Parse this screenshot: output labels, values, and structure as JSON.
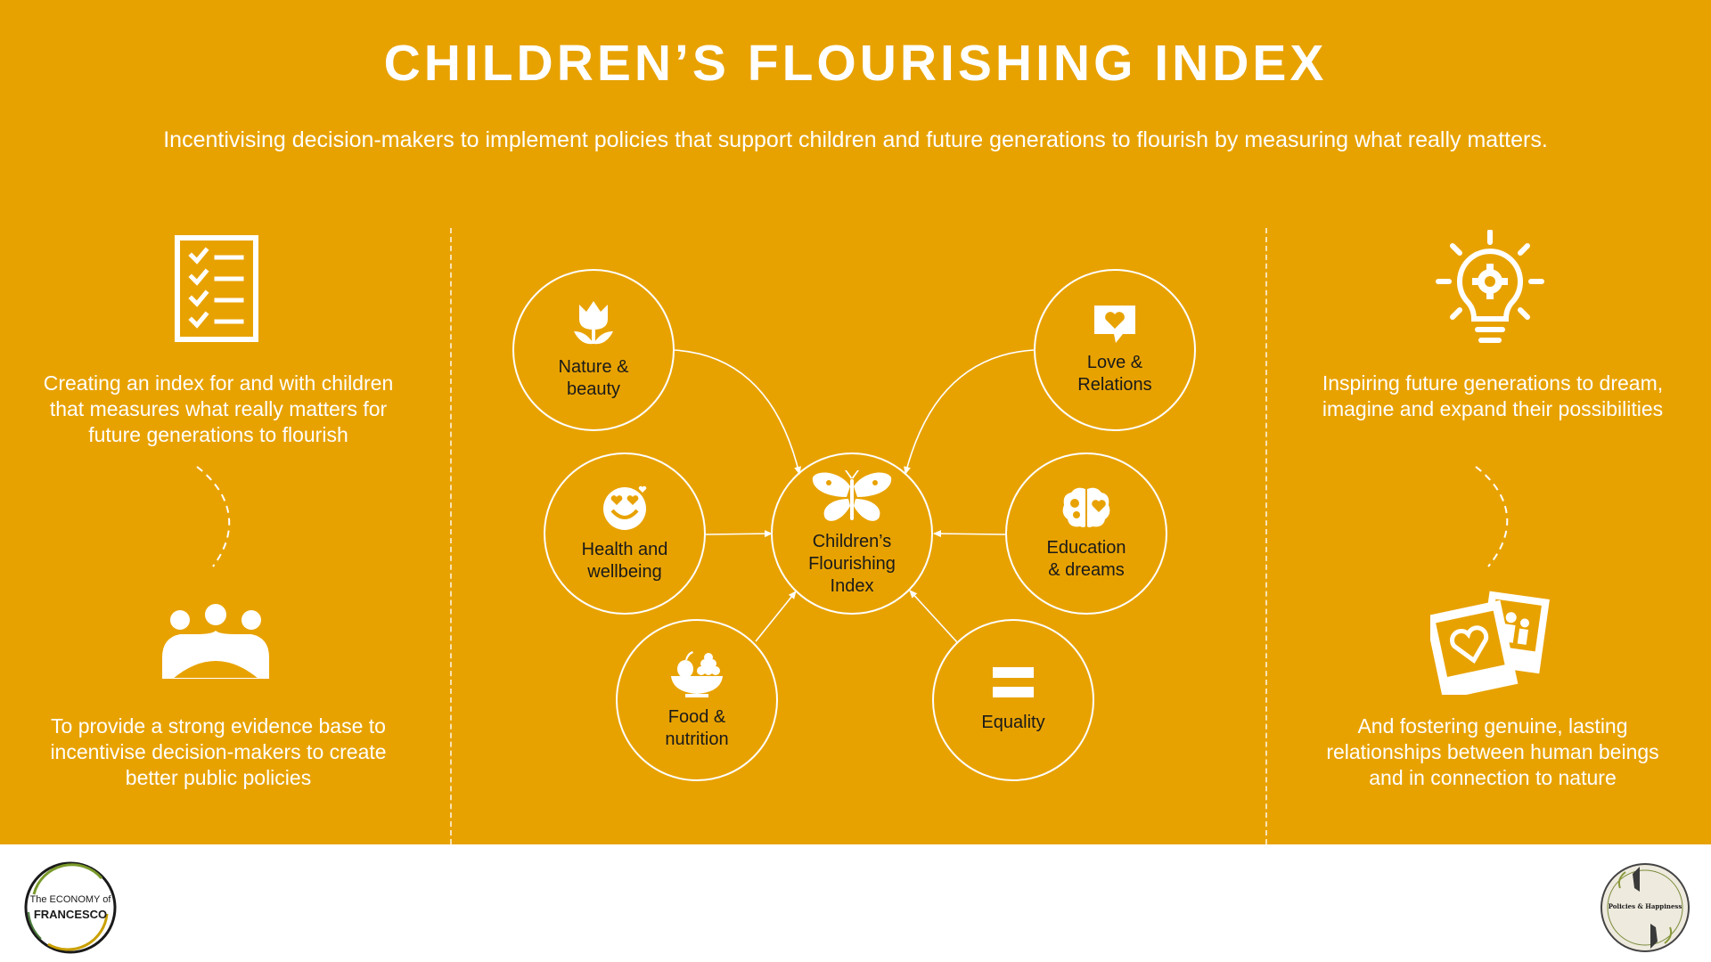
{
  "header": {
    "title": "CHILDREN’S FLOURISHING INDEX",
    "subtitle": "Incentivising decision-makers to implement policies that support children and future generations to flourish by measuring what really matters."
  },
  "left": {
    "text_top": "Creating an index for and with children that measures what really matters for future generations to flourish",
    "text_bottom": "To provide a strong evidence base to incentivise decision-makers to create better public policies"
  },
  "right": {
    "text_top": "Inspiring future generations to dream, imagine and expand their possibilities",
    "text_bottom": "And fostering genuine, lasting relationships between human beings and in connection to nature"
  },
  "diagram": {
    "center": {
      "label": "Children’s\nFlourishing\nIndex",
      "icon": "butterfly-icon"
    },
    "nodes": [
      {
        "id": "nature",
        "label": "Nature &\nbeauty",
        "icon": "tulip-icon"
      },
      {
        "id": "love",
        "label": "Love &\nRelations",
        "icon": "heart-chat-icon"
      },
      {
        "id": "health",
        "label": "Health and\nwellbeing",
        "icon": "smiley-hearts-icon"
      },
      {
        "id": "education",
        "label": "Education\n& dreams",
        "icon": "brain-icon"
      },
      {
        "id": "food",
        "label": "Food &\nnutrition",
        "icon": "fruit-bowl-icon"
      },
      {
        "id": "equality",
        "label": "Equality",
        "icon": "equals-icon"
      }
    ]
  },
  "footer": {
    "logo_left": {
      "line1": "The ECONOMY of",
      "line2": "FRANCESCO"
    },
    "logo_right": {
      "text": "Policies & Happiness"
    }
  },
  "colors": {
    "background": "#E8A200",
    "foreground": "#ffffff",
    "label": "#1a1a1a",
    "footer": "#ffffff"
  }
}
